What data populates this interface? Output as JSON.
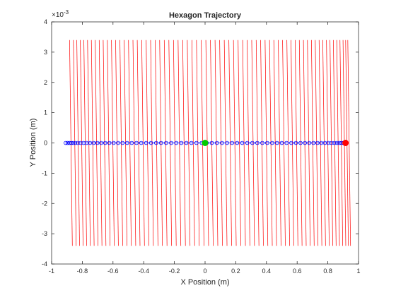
{
  "chart_data": {
    "type": "line",
    "title": "Hexagon Trajectory",
    "xlabel": "X Position (m)",
    "ylabel": "Y Position (m)",
    "xlim": [
      -1,
      1
    ],
    "ylim": [
      -0.004,
      0.004
    ],
    "y_exponent_label": "×10",
    "y_exponent_power": "-3",
    "xticks": [
      "-1",
      "-0.8",
      "-0.6",
      "-0.4",
      "-0.2",
      "0",
      "0.2",
      "0.4",
      "0.6",
      "0.8",
      "1"
    ],
    "xtick_values": [
      -1,
      -0.8,
      -0.6,
      -0.4,
      -0.2,
      0,
      0.2,
      0.4,
      0.6,
      0.8,
      1
    ],
    "yticks": [
      "-4",
      "-3",
      "-2",
      "-1",
      "0",
      "1",
      "2",
      "3",
      "4"
    ],
    "ytick_values": [
      -0.004,
      -0.003,
      -0.002,
      -0.001,
      0,
      0.001,
      0.002,
      0.003,
      0.004
    ],
    "grid": false,
    "colors": {
      "hexagon_lines": "#ff0000",
      "trajectory": "#0000ff",
      "start_marker": "#00cc00",
      "end_marker": "#ff0000",
      "axes": "#262626"
    },
    "hexagon_lines": {
      "color": "#ff0000",
      "y_top": 0.0034,
      "y_bottom": -0.0034,
      "x_left_edges": [
        -0.883,
        -0.858,
        -0.836,
        -0.813,
        -0.79,
        -0.766,
        -0.741,
        -0.716,
        -0.69,
        -0.664,
        -0.637,
        -0.61,
        -0.583,
        -0.555,
        -0.527,
        -0.499,
        -0.47,
        -0.442,
        -0.413,
        -0.384,
        -0.355,
        -0.325,
        -0.296,
        -0.266,
        -0.236,
        -0.206,
        -0.176,
        -0.146,
        -0.116,
        -0.086,
        -0.056,
        -0.025,
        0.005,
        0.035,
        0.065,
        0.095,
        0.125,
        0.155,
        0.185,
        0.215,
        0.245,
        0.274,
        0.304,
        0.333,
        0.362,
        0.391,
        0.42,
        0.448,
        0.477,
        0.505,
        0.533,
        0.56,
        0.587,
        0.614,
        0.641,
        0.667,
        0.693,
        0.718,
        0.743,
        0.767,
        0.791,
        0.814,
        0.836,
        0.858,
        0.879,
        0.899,
        0.916,
        0.93
      ],
      "tilt": 0.018
    },
    "trajectory": {
      "x": [
        -0.908,
        -0.896,
        -0.884,
        -0.872,
        -0.86,
        -0.846,
        -0.83,
        -0.812,
        -0.792,
        -0.771,
        -0.749,
        -0.726,
        -0.702,
        -0.677,
        -0.651,
        -0.624,
        -0.596,
        -0.567,
        -0.538,
        -0.508,
        -0.478,
        -0.447,
        -0.416,
        -0.384,
        -0.352,
        -0.319,
        -0.287,
        -0.254,
        -0.221,
        -0.188,
        -0.155,
        -0.122,
        -0.089,
        -0.056,
        -0.022,
        0.011,
        0.044,
        0.077,
        0.11,
        0.143,
        0.176,
        0.209,
        0.242,
        0.275,
        0.308,
        0.34,
        0.373,
        0.405,
        0.437,
        0.469,
        0.5,
        0.531,
        0.562,
        0.592,
        0.622,
        0.651,
        0.679,
        0.706,
        0.732,
        0.757,
        0.781,
        0.803,
        0.824,
        0.843,
        0.86,
        0.875,
        0.888,
        0.9,
        0.91,
        0.918
      ],
      "y": 0,
      "color": "#0000ff",
      "marker": "o"
    },
    "start_point": {
      "x": 0,
      "y": 0,
      "color": "#00cc00"
    },
    "end_point": {
      "x": 0.915,
      "y": 0,
      "color": "#ff0000"
    }
  }
}
